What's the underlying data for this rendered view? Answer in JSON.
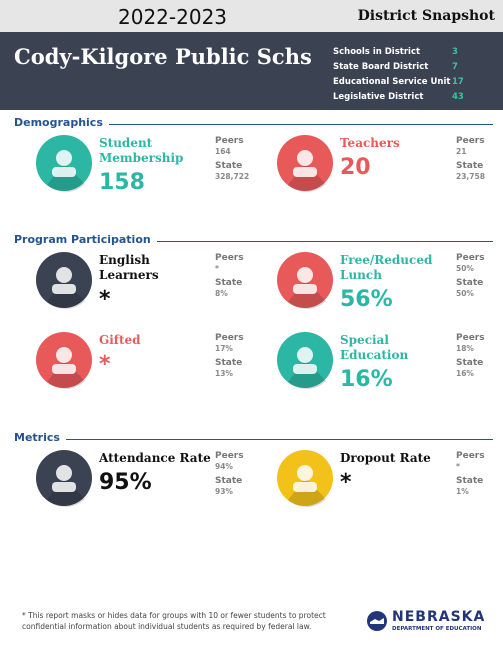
{
  "header": {
    "year": "2022-2023",
    "snapshot": "District Snapshot",
    "district": "Cody-Kilgore Public Schs",
    "info": [
      {
        "label": "Schools in District",
        "value": "3"
      },
      {
        "label": "State Board District",
        "value": "7"
      },
      {
        "label": "Educational Service Unit",
        "value": "17"
      },
      {
        "label": "Legislative District",
        "value": "43"
      }
    ]
  },
  "sections": [
    {
      "title": "Demographics",
      "items": [
        {
          "label": "Student Membership",
          "value": "158",
          "peers_label": "Peers",
          "peers": "164",
          "state_label": "State",
          "state": "328,722"
        },
        {
          "label": "Teachers",
          "value": "20",
          "peers_label": "Peers",
          "peers": "21",
          "state_label": "State",
          "state": "23,758"
        }
      ]
    },
    {
      "title": "Program Participation",
      "items": [
        {
          "label": "English Learners",
          "value": "*",
          "peers_label": "Peers",
          "peers": "*",
          "state_label": "State",
          "state": "8%"
        },
        {
          "label": "Free/Reduced Lunch",
          "value": "56%",
          "peers_label": "Peers",
          "peers": "50%",
          "state_label": "State",
          "state": "50%"
        },
        {
          "label": "Gifted",
          "value": "*",
          "peers_label": "Peers",
          "peers": "17%",
          "state_label": "State",
          "state": "13%"
        },
        {
          "label": "Special Education",
          "value": "16%",
          "peers_label": "Peers",
          "peers": "18%",
          "state_label": "State",
          "state": "16%"
        }
      ]
    },
    {
      "title": "Metrics",
      "items": [
        {
          "label": "Attendance Rate",
          "value": "95%",
          "peers_label": "Peers",
          "peers": "94%",
          "state_label": "State",
          "state": "93%"
        },
        {
          "label": "Dropout Rate",
          "value": "*",
          "peers_label": "Peers",
          "peers": "*",
          "state_label": "State",
          "state": "1%"
        }
      ]
    }
  ],
  "footer": {
    "note": "* This report masks or hides data for groups with 10 or fewer students to protect confidential information about individual students as required by federal law.",
    "logo": "NEBRASKA",
    "logo_sub": "DEPARTMENT OF EDUCATION"
  }
}
